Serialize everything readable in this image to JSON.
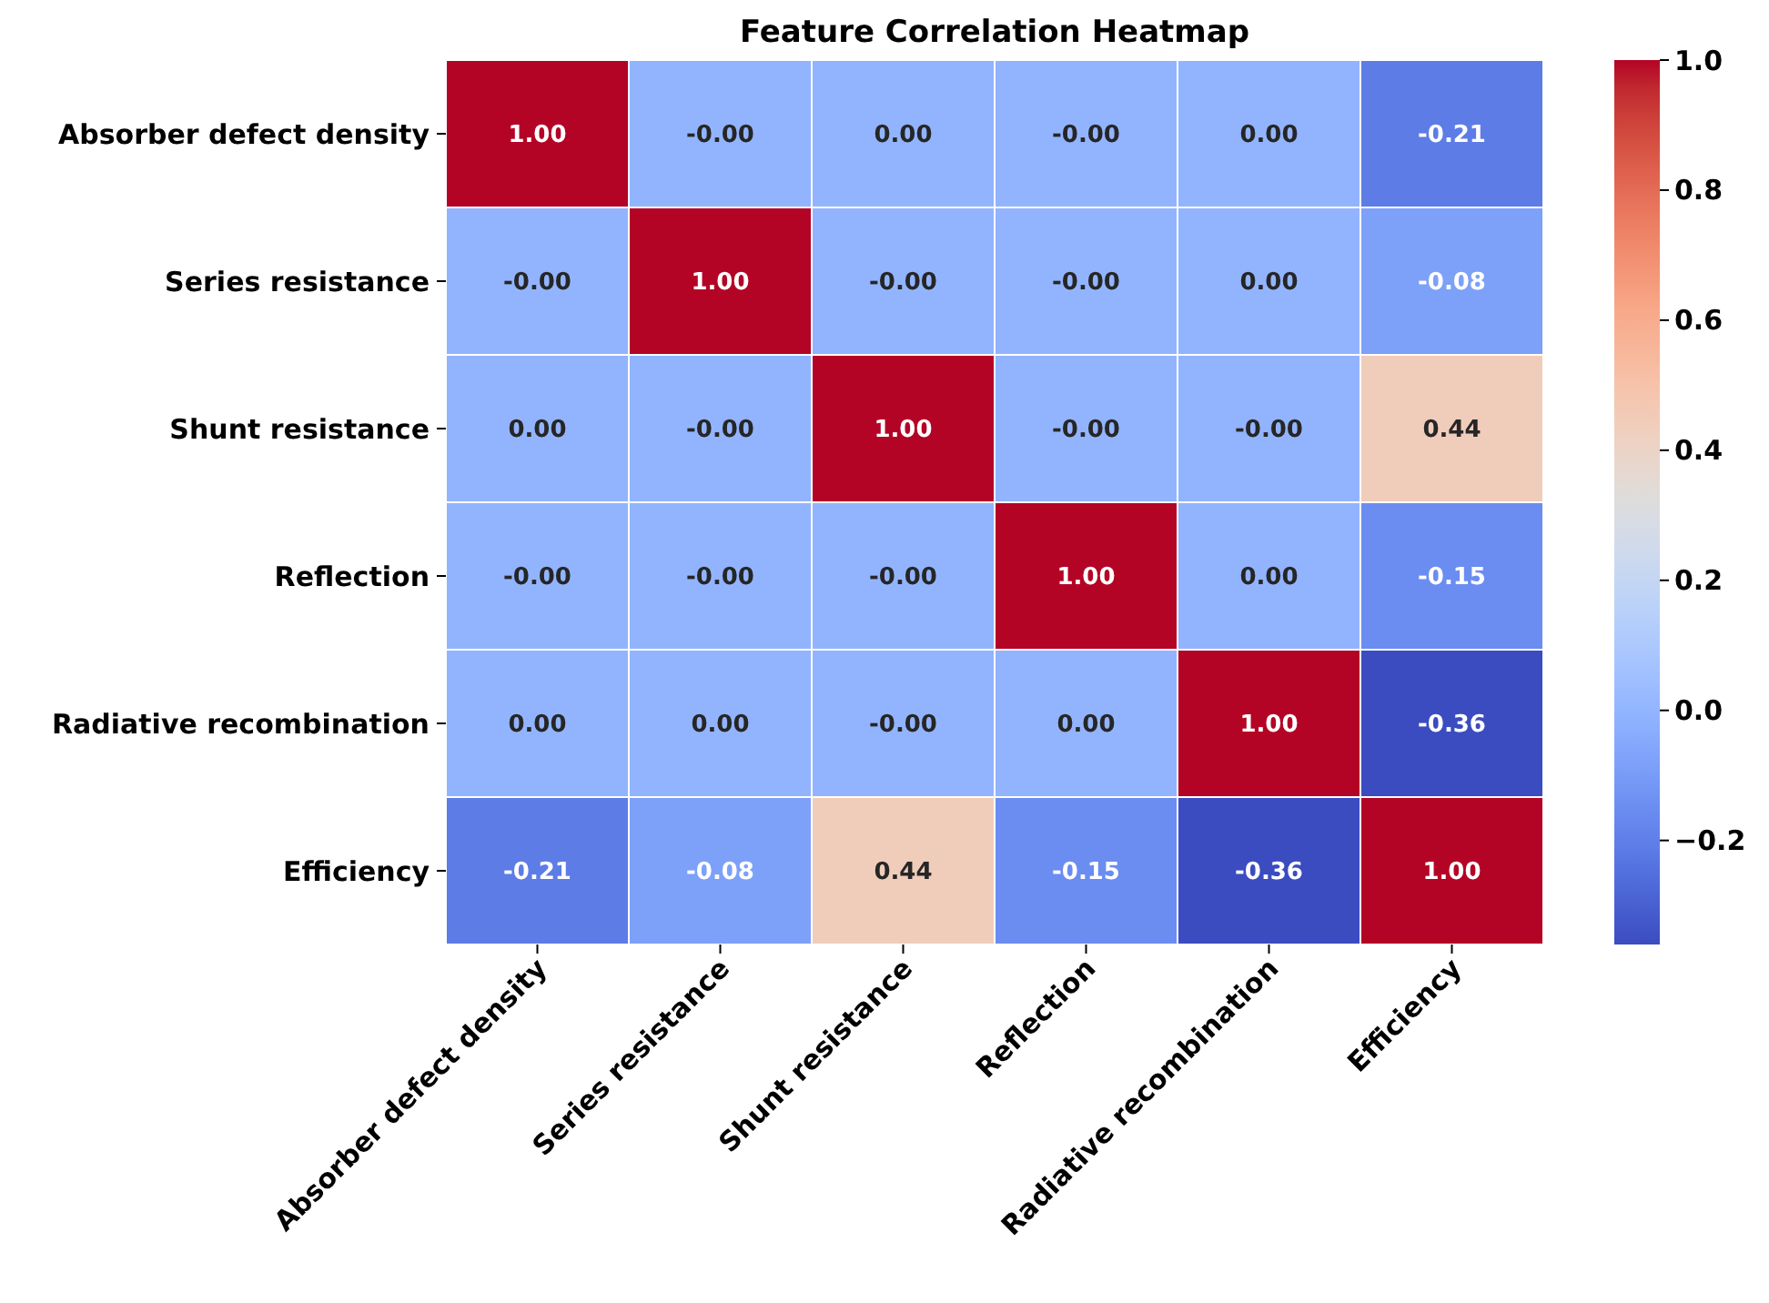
{
  "chart_data": {
    "type": "heatmap",
    "title": "Feature Correlation Heatmap",
    "categories": [
      "Absorber defect density",
      "Series resistance",
      "Shunt resistance",
      "Reflection",
      "Radiative recombination",
      "Efficiency"
    ],
    "y_categories": [
      "Absorber defect density",
      "Series resistance",
      "Shunt resistance",
      "Reflection",
      "Radiative recombination",
      "Efficiency"
    ],
    "cells": [
      [
        1,
        0,
        0,
        0,
        0,
        -0.21
      ],
      [
        0,
        1,
        0,
        0,
        0,
        -0.08
      ],
      [
        0,
        0,
        1,
        0,
        0,
        0.44
      ],
      [
        0,
        0,
        0,
        1,
        0,
        -0.15
      ],
      [
        0,
        0,
        0,
        0,
        1,
        -0.36
      ],
      [
        -0.21,
        -0.08,
        0.44,
        -0.15,
        -0.36,
        1
      ]
    ],
    "cell_labels": [
      [
        "1.00",
        "-0.00",
        "0.00",
        "-0.00",
        "0.00",
        "-0.21"
      ],
      [
        "-0.00",
        "1.00",
        "-0.00",
        "-0.00",
        "0.00",
        "-0.08"
      ],
      [
        "0.00",
        "-0.00",
        "1.00",
        "-0.00",
        "-0.00",
        "0.44"
      ],
      [
        "-0.00",
        "-0.00",
        "-0.00",
        "1.00",
        "0.00",
        "-0.15"
      ],
      [
        "0.00",
        "0.00",
        "-0.00",
        "0.00",
        "1.00",
        "-0.36"
      ],
      [
        "-0.21",
        "-0.08",
        "0.44",
        "-0.15",
        "-0.36",
        "1.00"
      ]
    ],
    "clim": [
      -0.36,
      1
    ],
    "cticks": [
      {
        "value": -0.2,
        "label": "−0.2"
      },
      {
        "value": 0,
        "label": "0.0"
      },
      {
        "value": 0.2,
        "label": "0.2"
      },
      {
        "value": 0.4,
        "label": "0.4"
      },
      {
        "value": 0.6,
        "label": "0.6"
      },
      {
        "value": 0.8,
        "label": "0.8"
      },
      {
        "value": 1,
        "label": "1.0"
      }
    ]
  }
}
